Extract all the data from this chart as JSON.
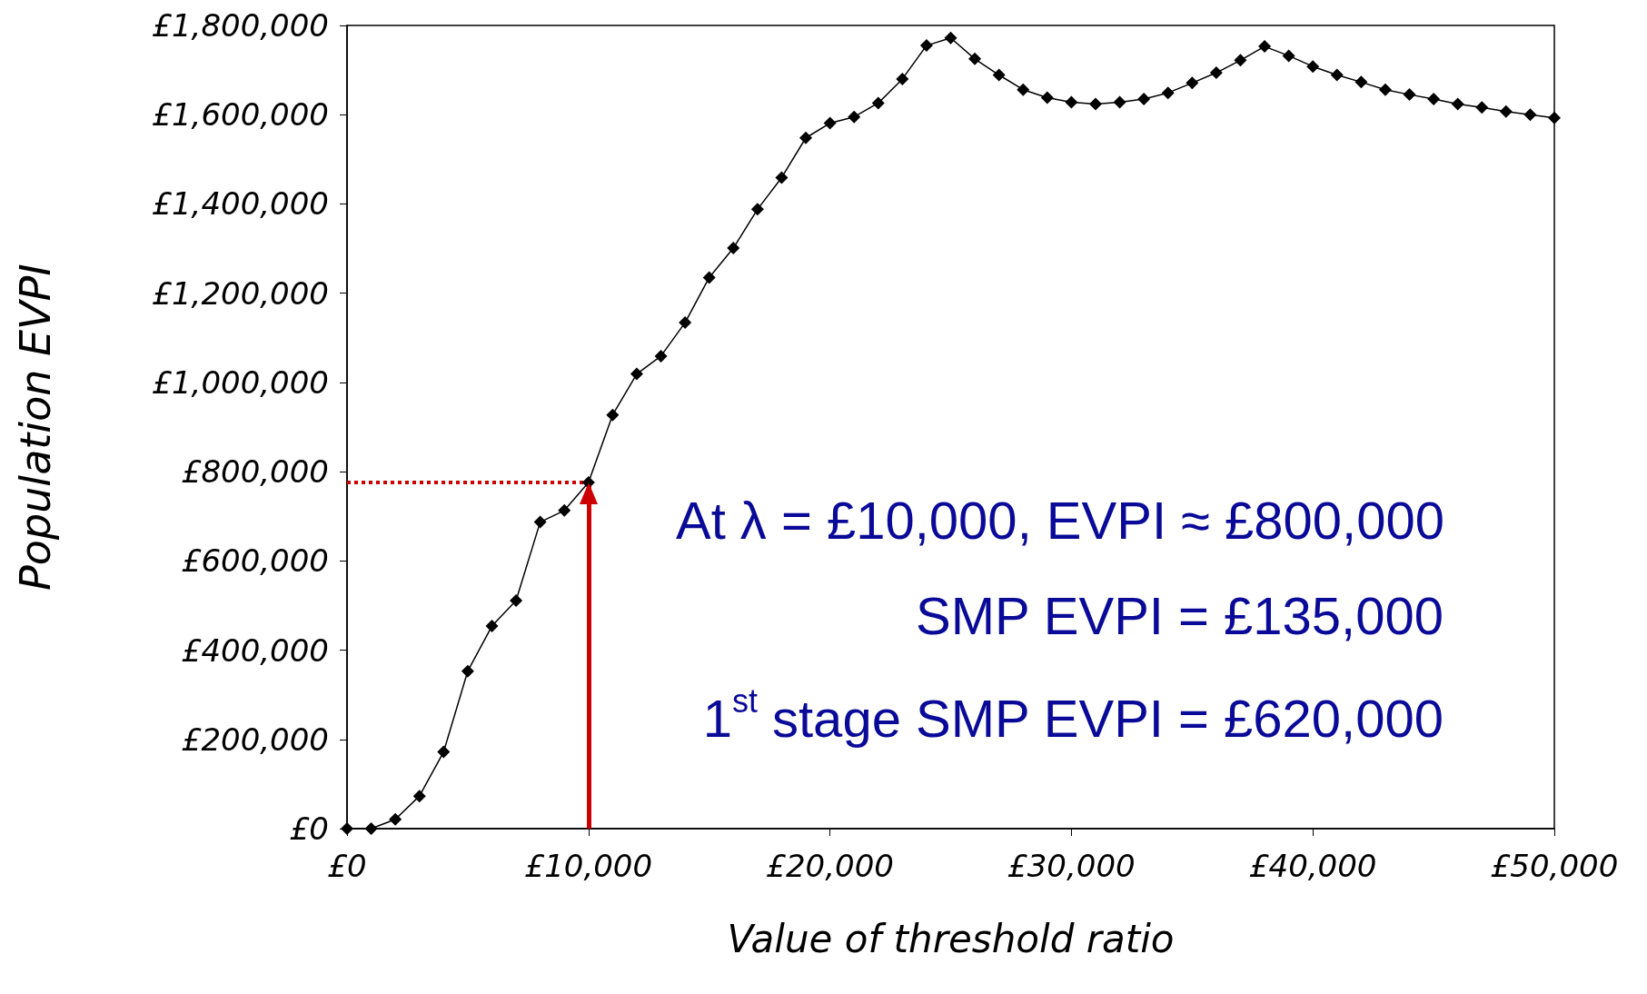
{
  "chart_data": {
    "type": "line",
    "xlabel": "Value of threshold ratio",
    "ylabel": "Population EVPI",
    "x": [
      0,
      1000,
      2000,
      3000,
      4000,
      5000,
      6000,
      7000,
      8000,
      9000,
      10000,
      11000,
      12000,
      13000,
      14000,
      15000,
      16000,
      17000,
      18000,
      19000,
      20000,
      21000,
      22000,
      23000,
      24000,
      25000,
      26000,
      27000,
      28000,
      29000,
      30000,
      31000,
      32000,
      33000,
      34000,
      35000,
      36000,
      37000,
      38000,
      39000,
      40000,
      41000,
      42000,
      43000,
      44000,
      45000,
      46000,
      47000,
      48000,
      49000,
      50000
    ],
    "series": [
      {
        "color": "#000000",
        "values": [
          0,
          0,
          21000,
          73000,
          172000,
          353000,
          454000,
          511000,
          687000,
          713000,
          776000,
          927000,
          1019000,
          1059000,
          1134000,
          1235000,
          1301000,
          1388000,
          1459000,
          1548000,
          1581000,
          1595000,
          1626000,
          1680000,
          1755000,
          1772000,
          1725000,
          1689000,
          1656000,
          1638000,
          1628000,
          1624000,
          1628000,
          1635000,
          1649000,
          1671000,
          1694000,
          1722000,
          1753000,
          1732000,
          1708000,
          1689000,
          1673000,
          1656000,
          1645000,
          1635000,
          1624000,
          1616000,
          1607000,
          1600000,
          1593000
        ]
      }
    ],
    "marker": "diamond",
    "line_style": "solid",
    "grid": false,
    "xlim": [
      0,
      50000
    ],
    "xticks": [
      {
        "value": 0,
        "label": "£0"
      },
      {
        "value": 10000,
        "label": "£10,000"
      },
      {
        "value": 20000,
        "label": "£20,000"
      },
      {
        "value": 30000,
        "label": "£30,000"
      },
      {
        "value": 40000,
        "label": "£40,000"
      },
      {
        "value": 50000,
        "label": "£50,000"
      }
    ],
    "ylim": [
      0,
      1800000
    ],
    "yticks": [
      {
        "value": 0,
        "label": "£0"
      },
      {
        "value": 200000,
        "label": "£200,000"
      },
      {
        "value": 400000,
        "label": "£400,000"
      },
      {
        "value": 600000,
        "label": "£600,000"
      },
      {
        "value": 800000,
        "label": "£800,000"
      },
      {
        "value": 1000000,
        "label": "£1,000,000"
      },
      {
        "value": 1200000,
        "label": "£1,200,000"
      },
      {
        "value": 1400000,
        "label": "£1,400,000"
      },
      {
        "value": 1600000,
        "label": "£1,600,000"
      },
      {
        "value": 1800000,
        "label": "£1,800,000"
      }
    ],
    "ref_lines": [
      {
        "axis": "y",
        "value": 776000,
        "color": "#cc0000",
        "line_style": "dotted"
      },
      {
        "axis": "x",
        "value": 10000,
        "color": "#cc0000",
        "line_style": "solid"
      }
    ],
    "annotations": [
      "At λ = £10,000, EVPI ≈ £800,000",
      "SMP EVPI = £135,000",
      "1$^{st}$ stage SMP EVPI = £620,000"
    ]
  }
}
